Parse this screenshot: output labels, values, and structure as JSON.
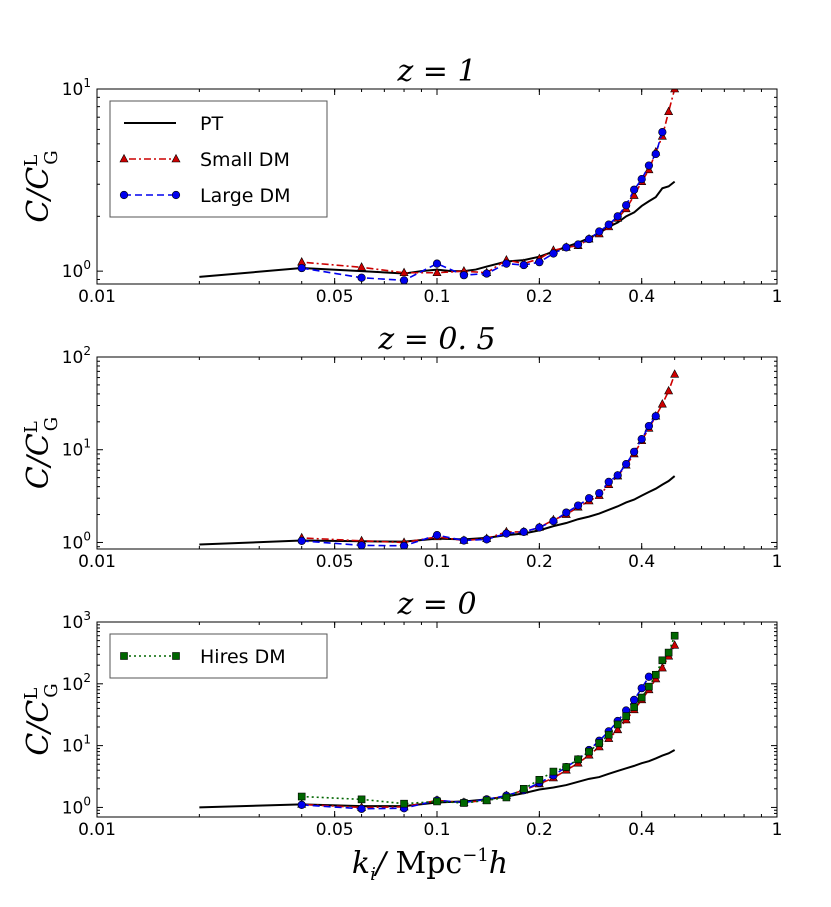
{
  "figure": {
    "xlabel": "k_i/   Mpc^-1 h",
    "ylabel": "C/C_G^L",
    "x_ticks": [
      {
        "value": 0.01,
        "label": "0.01"
      },
      {
        "value": 0.05,
        "label": "0.05"
      },
      {
        "value": 0.1,
        "label": "0.1"
      },
      {
        "value": 0.2,
        "label": "0.2"
      },
      {
        "value": 0.4,
        "label": "0.4"
      },
      {
        "value": 1,
        "label": "1"
      }
    ]
  },
  "chart_data": [
    {
      "type": "line",
      "title": "z = 1",
      "xscale": "log",
      "yscale": "log",
      "xlim": [
        0.01,
        1
      ],
      "ylim": [
        0.85,
        10
      ],
      "y_ticks": [
        {
          "value": 1,
          "base": "10",
          "exp": "0"
        },
        {
          "value": 10,
          "base": "10",
          "exp": "1"
        }
      ],
      "legend": {
        "placement": "top-left",
        "entries": [
          "PT",
          "Small  DM",
          "Large  DM"
        ]
      },
      "series": [
        {
          "name": "PT",
          "style": "solid",
          "color": "#000000",
          "marker": "none",
          "x": [
            0.02,
            0.04,
            0.06,
            0.08,
            0.09,
            0.1,
            0.11,
            0.12,
            0.13,
            0.14,
            0.16,
            0.18,
            0.2,
            0.22,
            0.24,
            0.26,
            0.28,
            0.3,
            0.32,
            0.34,
            0.36,
            0.38,
            0.4,
            0.42,
            0.44,
            0.46,
            0.48,
            0.5
          ],
          "y": [
            0.93,
            1.04,
            1.0,
            0.97,
            1.0,
            1.02,
            1.0,
            1.0,
            1.02,
            1.06,
            1.13,
            1.15,
            1.2,
            1.28,
            1.36,
            1.43,
            1.52,
            1.62,
            1.75,
            1.85,
            2.0,
            2.1,
            2.28,
            2.42,
            2.55,
            2.85,
            2.92,
            3.1
          ]
        },
        {
          "name": "Small  DM",
          "style": "dashdot",
          "color": "#cc0000",
          "marker": "triangle",
          "x": [
            0.04,
            0.06,
            0.08,
            0.1,
            0.12,
            0.14,
            0.16,
            0.18,
            0.2,
            0.22,
            0.24,
            0.26,
            0.28,
            0.3,
            0.32,
            0.34,
            0.36,
            0.38,
            0.4,
            0.42,
            0.44,
            0.46,
            0.48,
            0.5
          ],
          "y": [
            1.12,
            1.05,
            0.98,
            0.98,
            1.0,
            0.98,
            1.15,
            1.1,
            1.17,
            1.3,
            1.35,
            1.38,
            1.5,
            1.6,
            1.75,
            1.95,
            2.2,
            2.6,
            3.1,
            3.6,
            4.5,
            5.5,
            7.5,
            10.0
          ]
        },
        {
          "name": "Large  DM",
          "style": "dashed",
          "color": "#0000ee",
          "marker": "circle",
          "x": [
            0.04,
            0.06,
            0.08,
            0.1,
            0.12,
            0.14,
            0.16,
            0.18,
            0.2,
            0.22,
            0.24,
            0.26,
            0.28,
            0.3,
            0.32,
            0.34,
            0.36,
            0.38,
            0.4,
            0.42,
            0.44,
            0.46
          ],
          "y": [
            1.04,
            0.92,
            0.89,
            1.1,
            0.95,
            0.97,
            1.1,
            1.08,
            1.12,
            1.25,
            1.35,
            1.4,
            1.5,
            1.65,
            1.8,
            2.0,
            2.3,
            2.8,
            3.2,
            3.8,
            4.4,
            5.8
          ]
        }
      ]
    },
    {
      "type": "line",
      "title": "z = 0. 5",
      "xscale": "log",
      "yscale": "log",
      "xlim": [
        0.01,
        1
      ],
      "ylim": [
        0.85,
        100
      ],
      "y_ticks": [
        {
          "value": 1,
          "base": "10",
          "exp": "0"
        },
        {
          "value": 10,
          "base": "10",
          "exp": "1"
        },
        {
          "value": 100,
          "base": "10",
          "exp": "2"
        }
      ],
      "series": [
        {
          "name": "PT",
          "style": "solid",
          "color": "#000000",
          "marker": "none",
          "x": [
            0.02,
            0.04,
            0.06,
            0.08,
            0.1,
            0.12,
            0.14,
            0.16,
            0.18,
            0.2,
            0.22,
            0.24,
            0.26,
            0.28,
            0.3,
            0.32,
            0.34,
            0.36,
            0.38,
            0.4,
            0.42,
            0.44,
            0.46,
            0.48,
            0.5
          ],
          "y": [
            0.95,
            1.05,
            1.03,
            1.02,
            1.1,
            1.08,
            1.12,
            1.2,
            1.25,
            1.35,
            1.5,
            1.62,
            1.78,
            1.9,
            2.05,
            2.25,
            2.45,
            2.7,
            2.9,
            3.2,
            3.5,
            3.8,
            4.2,
            4.6,
            5.2
          ]
        },
        {
          "name": "Small  DM",
          "style": "dashdot",
          "color": "#cc0000",
          "marker": "triangle",
          "x": [
            0.04,
            0.06,
            0.08,
            0.1,
            0.12,
            0.14,
            0.16,
            0.18,
            0.2,
            0.22,
            0.24,
            0.26,
            0.28,
            0.3,
            0.32,
            0.34,
            0.36,
            0.38,
            0.4,
            0.42,
            0.44,
            0.46,
            0.48,
            0.5
          ],
          "y": [
            1.12,
            1.04,
            1.0,
            1.15,
            1.05,
            1.1,
            1.3,
            1.3,
            1.45,
            1.75,
            2.0,
            2.4,
            2.8,
            3.2,
            4.2,
            5.2,
            6.8,
            9.0,
            12.5,
            17.0,
            23.0,
            31.0,
            43.0,
            65.0
          ]
        },
        {
          "name": "Large  DM",
          "style": "dashed",
          "color": "#0000ee",
          "marker": "circle",
          "x": [
            0.04,
            0.06,
            0.08,
            0.1,
            0.12,
            0.14,
            0.16,
            0.18,
            0.2,
            0.22,
            0.24,
            0.26,
            0.28,
            0.3,
            0.32,
            0.34,
            0.36,
            0.38,
            0.4,
            0.42,
            0.44
          ],
          "y": [
            1.04,
            0.93,
            0.92,
            1.2,
            1.05,
            1.08,
            1.25,
            1.3,
            1.45,
            1.7,
            2.1,
            2.5,
            3.0,
            3.4,
            4.5,
            5.3,
            7.0,
            9.5,
            13.0,
            18.0,
            23.0
          ]
        }
      ]
    },
    {
      "type": "line",
      "title": "z = 0",
      "xscale": "log",
      "yscale": "log",
      "xlim": [
        0.01,
        1
      ],
      "ylim": [
        0.7,
        1000
      ],
      "y_ticks": [
        {
          "value": 1,
          "base": "10",
          "exp": "0"
        },
        {
          "value": 10,
          "base": "10",
          "exp": "1"
        },
        {
          "value": 100,
          "base": "10",
          "exp": "2"
        },
        {
          "value": 1000,
          "base": "10",
          "exp": "3"
        }
      ],
      "legend": {
        "placement": "top-left",
        "entries": [
          "Hires  DM"
        ]
      },
      "series": [
        {
          "name": "PT",
          "style": "solid",
          "color": "#000000",
          "marker": "none",
          "x": [
            0.02,
            0.04,
            0.06,
            0.08,
            0.1,
            0.12,
            0.14,
            0.16,
            0.18,
            0.2,
            0.22,
            0.24,
            0.26,
            0.28,
            0.3,
            0.32,
            0.34,
            0.36,
            0.38,
            0.4,
            0.42,
            0.44,
            0.46,
            0.48,
            0.5
          ],
          "y": [
            1.0,
            1.12,
            1.05,
            1.05,
            1.2,
            1.25,
            1.35,
            1.5,
            1.7,
            1.95,
            2.1,
            2.3,
            2.6,
            2.9,
            3.1,
            3.5,
            3.9,
            4.3,
            4.7,
            5.2,
            5.6,
            6.2,
            6.9,
            7.5,
            8.5
          ]
        },
        {
          "name": "Small  DM",
          "style": "dashdot",
          "color": "#cc0000",
          "marker": "triangle",
          "x": [
            0.04,
            0.06,
            0.08,
            0.1,
            0.12,
            0.14,
            0.16,
            0.18,
            0.2,
            0.22,
            0.24,
            0.26,
            0.28,
            0.3,
            0.32,
            0.34,
            0.36,
            0.38,
            0.4,
            0.42,
            0.44,
            0.46,
            0.48,
            0.5
          ],
          "y": [
            1.12,
            1.0,
            1.02,
            1.3,
            1.2,
            1.3,
            1.55,
            1.9,
            2.4,
            3.0,
            4.0,
            5.2,
            7.0,
            9.5,
            13.0,
            18.0,
            26.0,
            38.0,
            55.0,
            80.0,
            120.0,
            180.0,
            280.0,
            420.0
          ]
        },
        {
          "name": "Large  DM",
          "style": "dashed",
          "color": "#0000ee",
          "marker": "circle",
          "x": [
            0.04,
            0.06,
            0.08,
            0.1,
            0.12,
            0.14,
            0.16,
            0.18,
            0.2,
            0.22,
            0.24,
            0.26,
            0.28,
            0.3,
            0.32,
            0.34,
            0.36,
            0.38,
            0.4,
            0.42
          ],
          "y": [
            1.1,
            0.95,
            0.97,
            1.3,
            1.2,
            1.35,
            1.55,
            1.9,
            2.5,
            3.3,
            4.5,
            6.0,
            8.5,
            12.0,
            17.0,
            25.0,
            37.0,
            55.0,
            85.0,
            130.0
          ]
        },
        {
          "name": "Hires  DM",
          "style": "dotted",
          "color": "#006600",
          "marker": "square",
          "x": [
            0.04,
            0.06,
            0.08,
            0.1,
            0.12,
            0.14,
            0.16,
            0.18,
            0.2,
            0.22,
            0.24,
            0.26,
            0.28,
            0.3,
            0.32,
            0.34,
            0.36,
            0.38,
            0.4,
            0.42,
            0.44,
            0.46,
            0.48,
            0.5
          ],
          "y": [
            1.5,
            1.35,
            1.15,
            1.25,
            1.18,
            1.3,
            1.45,
            2.0,
            2.8,
            3.8,
            4.5,
            6.0,
            8.0,
            11.0,
            15.0,
            22.0,
            30.0,
            42.0,
            60.0,
            90.0,
            140.0,
            240.0,
            320.0,
            600.0
          ]
        }
      ]
    }
  ]
}
